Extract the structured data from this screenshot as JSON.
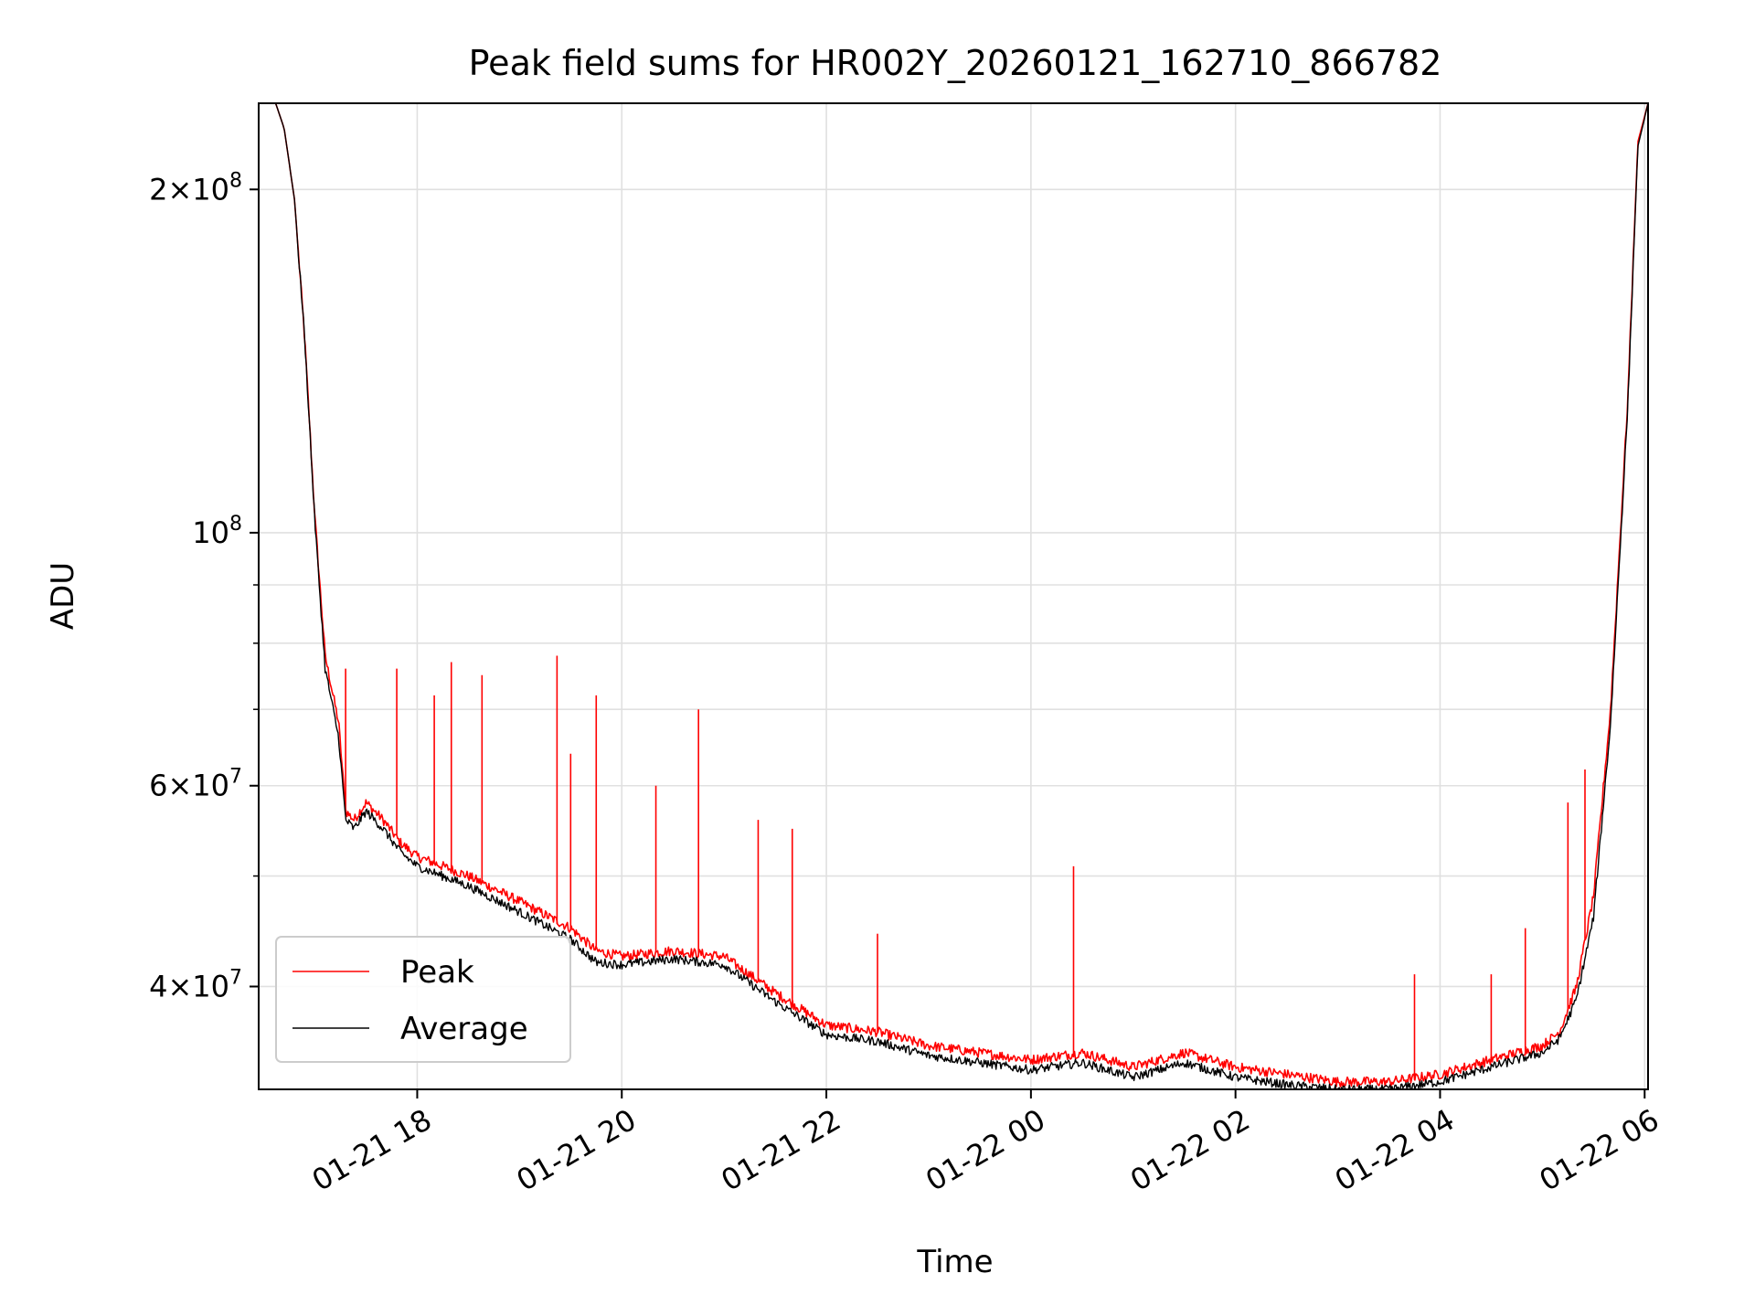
{
  "chart_data": {
    "type": "line",
    "title": "Peak field sums for HR002Y_20260121_162710_866782",
    "xlabel": "Time",
    "ylabel": "ADU",
    "x_unit": "time",
    "xlim": [
      "2026-01-21 16:27",
      "2026-01-22 06:02"
    ],
    "ylim": [
      32500000,
      238000000
    ],
    "yscale": "log",
    "grid": true,
    "legend_position": "lower-left",
    "x_ticks": [
      {
        "value": "2026-01-21 18:00",
        "label": "01-21 18"
      },
      {
        "value": "2026-01-21 20:00",
        "label": "01-21 20"
      },
      {
        "value": "2026-01-21 22:00",
        "label": "01-21 22"
      },
      {
        "value": "2026-01-22 00:00",
        "label": "01-22 00"
      },
      {
        "value": "2026-01-22 02:00",
        "label": "01-22 02"
      },
      {
        "value": "2026-01-22 04:00",
        "label": "01-22 04"
      },
      {
        "value": "2026-01-22 06:00",
        "label": "01-22 06"
      }
    ],
    "y_ticks": [
      {
        "value": 40000000,
        "mantissa": "4",
        "exp": "7"
      },
      {
        "value": 60000000,
        "mantissa": "6",
        "exp": "7"
      },
      {
        "value": 100000000,
        "mantissa": "",
        "exp": "8"
      },
      {
        "value": 200000000,
        "mantissa": "2",
        "exp": "8"
      }
    ],
    "y_minor_ticks": [
      50000000,
      70000000,
      80000000,
      90000000
    ],
    "series": [
      {
        "name": "Peak",
        "color": "#ff0000",
        "x": [
          "2026-01-21 16:27",
          "2026-01-21 16:37",
          "2026-01-21 16:42",
          "2026-01-21 16:48",
          "2026-01-21 16:54",
          "2026-01-21 17:00",
          "2026-01-21 17:06",
          "2026-01-21 17:14",
          "2026-01-21 17:18",
          "2026-01-21 17:23",
          "2026-01-21 17:30",
          "2026-01-21 17:40",
          "2026-01-21 17:50",
          "2026-01-21 18:00",
          "2026-01-21 18:30",
          "2026-01-21 19:00",
          "2026-01-21 19:30",
          "2026-01-21 19:45",
          "2026-01-21 20:00",
          "2026-01-21 20:30",
          "2026-01-21 21:00",
          "2026-01-21 21:30",
          "2026-01-21 22:00",
          "2026-01-21 22:30",
          "2026-01-21 23:00",
          "2026-01-21 23:30",
          "2026-01-22 00:00",
          "2026-01-22 00:30",
          "2026-01-22 01:00",
          "2026-01-22 01:30",
          "2026-01-22 02:00",
          "2026-01-22 02:30",
          "2026-01-22 03:00",
          "2026-01-22 03:30",
          "2026-01-22 04:00",
          "2026-01-22 04:30",
          "2026-01-22 05:00",
          "2026-01-22 05:10",
          "2026-01-22 05:20",
          "2026-01-22 05:30",
          "2026-01-22 05:40",
          "2026-01-22 05:50",
          "2026-01-22 05:56",
          "2026-01-22 06:02"
        ],
        "values": [
          238000000,
          238000000,
          226000000,
          196000000,
          148000000,
          103000000,
          78000000,
          68000000,
          57000000,
          56000000,
          58000000,
          56000000,
          53500000,
          52000000,
          50000000,
          47500000,
          45000000,
          43000000,
          42500000,
          43000000,
          42500000,
          39500000,
          37000000,
          36500000,
          35500000,
          35000000,
          34500000,
          35000000,
          34000000,
          35000000,
          34000000,
          33500000,
          33000000,
          33000000,
          33500000,
          34500000,
          35500000,
          36500000,
          40000000,
          48000000,
          70000000,
          130000000,
          220000000,
          238000000
        ],
        "spikes": [
          {
            "x": "2026-01-21 17:18",
            "value": 76000000
          },
          {
            "x": "2026-01-21 17:48",
            "value": 76000000
          },
          {
            "x": "2026-01-21 18:10",
            "value": 72000000
          },
          {
            "x": "2026-01-21 18:20",
            "value": 77000000
          },
          {
            "x": "2026-01-21 18:38",
            "value": 75000000
          },
          {
            "x": "2026-01-21 19:22",
            "value": 78000000
          },
          {
            "x": "2026-01-21 19:30",
            "value": 64000000
          },
          {
            "x": "2026-01-21 19:45",
            "value": 72000000
          },
          {
            "x": "2026-01-21 20:20",
            "value": 60000000
          },
          {
            "x": "2026-01-21 20:45",
            "value": 70000000
          },
          {
            "x": "2026-01-21 21:20",
            "value": 56000000
          },
          {
            "x": "2026-01-21 21:40",
            "value": 55000000
          },
          {
            "x": "2026-01-21 22:30",
            "value": 44500000
          },
          {
            "x": "2026-01-22 00:25",
            "value": 51000000
          },
          {
            "x": "2026-01-22 03:45",
            "value": 41000000
          },
          {
            "x": "2026-01-22 04:30",
            "value": 41000000
          },
          {
            "x": "2026-01-22 04:50",
            "value": 45000000
          },
          {
            "x": "2026-01-22 05:15",
            "value": 58000000
          },
          {
            "x": "2026-01-22 05:25",
            "value": 62000000
          }
        ]
      },
      {
        "name": "Average",
        "color": "#000000",
        "x": [
          "2026-01-21 16:27",
          "2026-01-21 16:37",
          "2026-01-21 16:42",
          "2026-01-21 16:48",
          "2026-01-21 16:54",
          "2026-01-21 17:00",
          "2026-01-21 17:06",
          "2026-01-21 17:14",
          "2026-01-21 17:18",
          "2026-01-21 17:23",
          "2026-01-21 17:30",
          "2026-01-21 17:40",
          "2026-01-21 17:50",
          "2026-01-21 18:00",
          "2026-01-21 18:30",
          "2026-01-21 19:00",
          "2026-01-21 19:30",
          "2026-01-21 19:45",
          "2026-01-21 20:00",
          "2026-01-21 20:30",
          "2026-01-21 21:00",
          "2026-01-21 21:30",
          "2026-01-21 22:00",
          "2026-01-21 22:30",
          "2026-01-21 23:00",
          "2026-01-21 23:30",
          "2026-01-22 00:00",
          "2026-01-22 00:30",
          "2026-01-22 01:00",
          "2026-01-22 01:30",
          "2026-01-22 02:00",
          "2026-01-22 02:30",
          "2026-01-22 03:00",
          "2026-01-22 03:30",
          "2026-01-22 04:00",
          "2026-01-22 04:30",
          "2026-01-22 05:00",
          "2026-01-22 05:10",
          "2026-01-22 05:20",
          "2026-01-22 05:30",
          "2026-01-22 05:40",
          "2026-01-22 05:50",
          "2026-01-22 05:56",
          "2026-01-22 06:02"
        ],
        "values": [
          238000000,
          238000000,
          226000000,
          196000000,
          148000000,
          102000000,
          76000000,
          66000000,
          56000000,
          55000000,
          57000000,
          55000000,
          52500000,
          51000000,
          49000000,
          46500000,
          44000000,
          42000000,
          41800000,
          42300000,
          41800000,
          38800000,
          36300000,
          35800000,
          34800000,
          34300000,
          33800000,
          34300000,
          33300000,
          34300000,
          33300000,
          32800000,
          32500000,
          32500000,
          33000000,
          34000000,
          35000000,
          36000000,
          39000000,
          46000000,
          68000000,
          128000000,
          218000000,
          238000000
        ]
      }
    ]
  }
}
